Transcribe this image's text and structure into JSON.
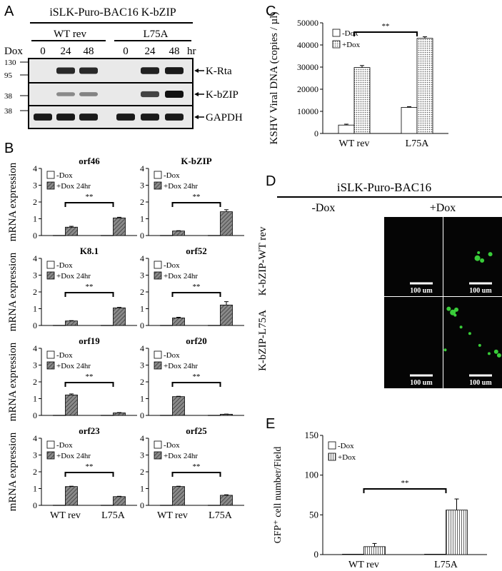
{
  "panel_letters": [
    "A",
    "B",
    "C",
    "D",
    "E"
  ],
  "panel_a": {
    "title": "iSLK-Puro-BAC16 K-bZIP",
    "groups": [
      "WT rev",
      "L75A"
    ],
    "dox_label": "Dox",
    "time_points": [
      "0",
      "24",
      "48",
      "0",
      "24",
      "48"
    ],
    "time_unit": "hr",
    "blots": [
      {
        "name": "K-Rta",
        "markers": [
          "130",
          "95"
        ]
      },
      {
        "name": "K-bZIP",
        "markers": [
          "38"
        ]
      },
      {
        "name": "GAPDH",
        "markers": [
          "38"
        ]
      }
    ],
    "band_intensity": [
      [
        0.0,
        0.85,
        0.85,
        0.0,
        0.9,
        0.95
      ],
      [
        0.0,
        0.25,
        0.3,
        0.0,
        0.7,
        1.0
      ],
      [
        0.95,
        0.95,
        0.95,
        0.95,
        0.95,
        0.95
      ]
    ],
    "colors": {
      "band": "#111111",
      "blot_bg": "#e9e9e9"
    }
  },
  "panel_b": {
    "ylabel": "mRNA expression",
    "legend": [
      "-Dox",
      "+Dox 24hr"
    ],
    "significance": "**",
    "categories": [
      "WT rev",
      "L75A"
    ]
  },
  "panel_d": {
    "title": "iSLK-Puro-BAC16",
    "columns": [
      "-Dox",
      "+Dox"
    ],
    "rows": [
      "K-bZIP-WT rev",
      "K-bZIP-L75A"
    ],
    "scale_bar": "100 um",
    "colors": {
      "cell": "#3fe23f",
      "background": "#050505"
    }
  },
  "chart_data": [
    {
      "panel": "B",
      "type": "bar",
      "title": "orf46",
      "ylabel": "mRNA expression",
      "categories": [
        "WT rev",
        "L75A"
      ],
      "ylim": [
        0,
        4
      ],
      "yticks": [
        0,
        1,
        2,
        3,
        4
      ],
      "series": [
        {
          "name": "-Dox",
          "values": [
            0.01,
            0.01
          ]
        },
        {
          "name": "+Dox 24hr",
          "values": [
            0.5,
            1.05
          ],
          "errors": [
            0.05,
            0.04
          ]
        }
      ],
      "annotation": "**"
    },
    {
      "panel": "B",
      "type": "bar",
      "title": "K-bZIP",
      "ylabel": "",
      "categories": [
        "WT rev",
        "L75A"
      ],
      "ylim": [
        0,
        4
      ],
      "yticks": [
        0,
        1,
        2,
        3,
        4
      ],
      "series": [
        {
          "name": "-Dox",
          "values": [
            0.01,
            0.01
          ]
        },
        {
          "name": "+Dox 24hr",
          "values": [
            0.27,
            1.42
          ],
          "errors": [
            0.02,
            0.12
          ]
        }
      ],
      "annotation": "**"
    },
    {
      "panel": "B",
      "type": "bar",
      "title": "K8.1",
      "ylabel": "mRNA expression",
      "categories": [
        "WT rev",
        "L75A"
      ],
      "ylim": [
        0,
        4
      ],
      "yticks": [
        0,
        1,
        2,
        3,
        4
      ],
      "series": [
        {
          "name": "-Dox",
          "values": [
            0.01,
            0.01
          ]
        },
        {
          "name": "+Dox 24hr",
          "values": [
            0.27,
            1.05
          ],
          "errors": [
            0.02,
            0.03
          ]
        }
      ],
      "annotation": "**"
    },
    {
      "panel": "B",
      "type": "bar",
      "title": "orf52",
      "ylabel": "",
      "categories": [
        "WT rev",
        "L75A"
      ],
      "ylim": [
        0,
        4
      ],
      "yticks": [
        0,
        1,
        2,
        3,
        4
      ],
      "series": [
        {
          "name": "-Dox",
          "values": [
            0.01,
            0.01
          ]
        },
        {
          "name": "+Dox 24hr",
          "values": [
            0.45,
            1.22
          ],
          "errors": [
            0.04,
            0.2
          ]
        }
      ],
      "annotation": "**"
    },
    {
      "panel": "B",
      "type": "bar",
      "title": "orf19",
      "ylabel": "mRNA expression",
      "categories": [
        "WT rev",
        "L75A"
      ],
      "ylim": [
        0,
        4
      ],
      "yticks": [
        0,
        1,
        2,
        3,
        4
      ],
      "series": [
        {
          "name": "-Dox",
          "values": [
            0.01,
            0.01
          ]
        },
        {
          "name": "+Dox 24hr",
          "values": [
            1.22,
            0.15
          ],
          "errors": [
            0.06,
            0.02
          ]
        }
      ],
      "annotation": "**"
    },
    {
      "panel": "B",
      "type": "bar",
      "title": "orf20",
      "ylabel": "",
      "categories": [
        "WT rev",
        "L75A"
      ],
      "ylim": [
        0,
        4
      ],
      "yticks": [
        0,
        1,
        2,
        3,
        4
      ],
      "series": [
        {
          "name": "-Dox",
          "values": [
            0.01,
            0.01
          ]
        },
        {
          "name": "+Dox 24hr",
          "values": [
            1.12,
            0.07
          ],
          "errors": [
            0.02,
            0.01
          ]
        }
      ],
      "annotation": "**"
    },
    {
      "panel": "B",
      "type": "bar",
      "title": "orf23",
      "ylabel": "mRNA expression",
      "categories": [
        "WT rev",
        "L75A"
      ],
      "ylim": [
        0,
        4
      ],
      "yticks": [
        0,
        1,
        2,
        3,
        4
      ],
      "series": [
        {
          "name": "-Dox",
          "values": [
            0.01,
            0.01
          ]
        },
        {
          "name": "+Dox 24hr",
          "values": [
            1.12,
            0.52
          ],
          "errors": [
            0.02,
            0.02
          ]
        }
      ],
      "annotation": "**"
    },
    {
      "panel": "B",
      "type": "bar",
      "title": "orf25",
      "ylabel": "",
      "categories": [
        "WT rev",
        "L75A"
      ],
      "ylim": [
        0,
        4
      ],
      "yticks": [
        0,
        1,
        2,
        3,
        4
      ],
      "series": [
        {
          "name": "-Dox",
          "values": [
            0.01,
            0.01
          ]
        },
        {
          "name": "+Dox 24hr",
          "values": [
            1.12,
            0.6
          ],
          "errors": [
            0.02,
            0.03
          ]
        }
      ],
      "annotation": "**"
    },
    {
      "panel": "C",
      "type": "bar",
      "title": "",
      "ylabel": "KSHV Viral DNA (copies / µl)",
      "categories": [
        "WT rev",
        "L75A"
      ],
      "ylim": [
        0,
        50000
      ],
      "yticks": [
        0,
        10000,
        20000,
        30000,
        40000,
        50000
      ],
      "series": [
        {
          "name": "-Dox",
          "values": [
            3800,
            11800
          ],
          "errors": [
            400,
            300
          ]
        },
        {
          "name": "+Dox",
          "values": [
            29800,
            43000
          ],
          "errors": [
            900,
            700
          ]
        }
      ],
      "annotation": "**"
    },
    {
      "panel": "E",
      "type": "bar",
      "title": "",
      "ylabel": "GFP⁺ cell number/Field",
      "categories": [
        "WT rev",
        "L75A"
      ],
      "ylim": [
        0,
        150
      ],
      "yticks": [
        0,
        50,
        100,
        150
      ],
      "series": [
        {
          "name": "-Dox",
          "values": [
            0.5,
            0.5
          ],
          "errors": [
            0,
            0
          ]
        },
        {
          "name": "+Dox",
          "values": [
            10,
            56
          ],
          "errors": [
            4,
            14
          ]
        }
      ],
      "annotation": "**"
    }
  ]
}
